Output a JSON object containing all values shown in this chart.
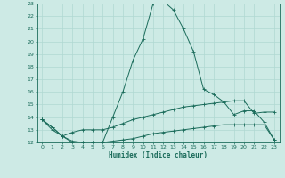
{
  "xlabel": "Humidex (Indice chaleur)",
  "bg_color": "#cdeae5",
  "grid_color": "#b0d8d2",
  "line_color": "#1a6b5a",
  "xlim": [
    -0.5,
    23.5
  ],
  "ylim": [
    12,
    23
  ],
  "xticks": [
    0,
    1,
    2,
    3,
    4,
    5,
    6,
    7,
    8,
    9,
    10,
    11,
    12,
    13,
    14,
    15,
    16,
    17,
    18,
    19,
    20,
    21,
    22,
    23
  ],
  "yticks": [
    12,
    13,
    14,
    15,
    16,
    17,
    18,
    19,
    20,
    21,
    22,
    23
  ],
  "line1_x": [
    0,
    1,
    2,
    3,
    4,
    5,
    6,
    7,
    8,
    9,
    10,
    11,
    12,
    13,
    14,
    15,
    16,
    17,
    18,
    19,
    20,
    21,
    22,
    23
  ],
  "line1_y": [
    13.8,
    13.2,
    12.5,
    12.0,
    12.0,
    12.0,
    12.0,
    14.0,
    16.0,
    18.5,
    20.2,
    23.0,
    23.2,
    22.5,
    21.0,
    19.2,
    16.2,
    15.8,
    15.2,
    14.2,
    14.5,
    14.5,
    13.6,
    12.2
  ],
  "line2_x": [
    0,
    1,
    2,
    3,
    4,
    5,
    6,
    7,
    8,
    9,
    10,
    11,
    12,
    13,
    14,
    15,
    16,
    17,
    18,
    19,
    20,
    21,
    22,
    23
  ],
  "line2_y": [
    13.8,
    13.2,
    12.5,
    12.8,
    13.0,
    13.0,
    13.0,
    13.2,
    13.5,
    13.8,
    14.0,
    14.2,
    14.4,
    14.6,
    14.8,
    14.9,
    15.0,
    15.1,
    15.2,
    15.3,
    15.3,
    14.3,
    14.4,
    14.4
  ],
  "line3_x": [
    0,
    1,
    2,
    3,
    4,
    5,
    6,
    7,
    8,
    9,
    10,
    11,
    12,
    13,
    14,
    15,
    16,
    17,
    18,
    19,
    20,
    21,
    22,
    23
  ],
  "line3_y": [
    13.8,
    13.0,
    12.5,
    12.1,
    12.0,
    12.0,
    12.0,
    12.1,
    12.2,
    12.3,
    12.5,
    12.7,
    12.8,
    12.9,
    13.0,
    13.1,
    13.2,
    13.3,
    13.4,
    13.4,
    13.4,
    13.4,
    13.4,
    12.2
  ]
}
